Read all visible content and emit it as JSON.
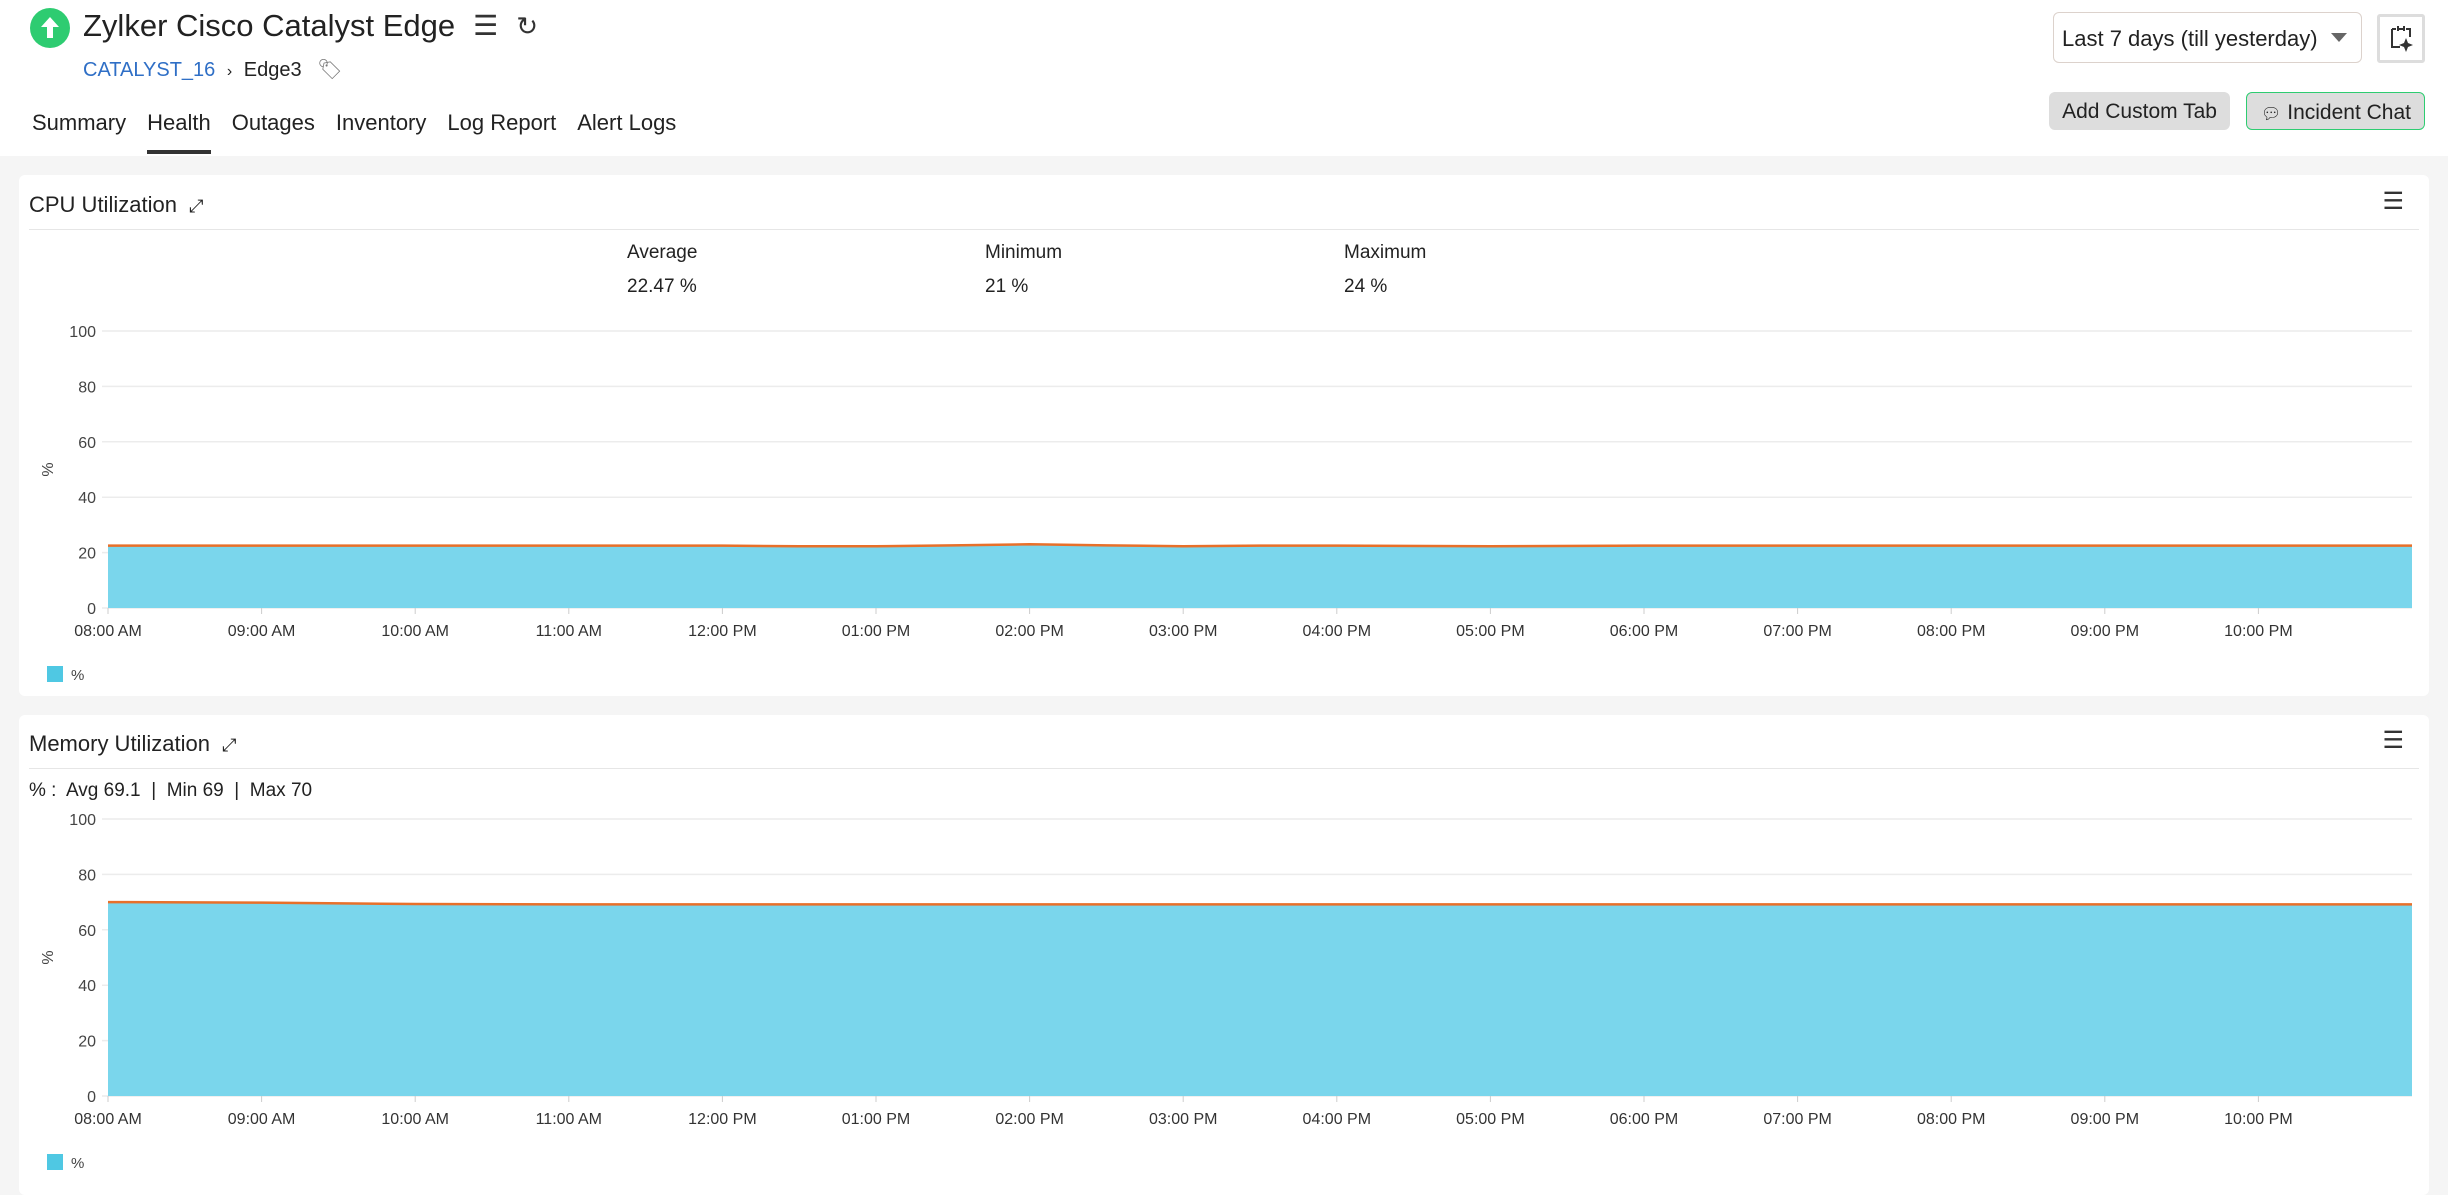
{
  "header": {
    "title": "Zylker Cisco Catalyst Edge",
    "status_color": "#2ecc71",
    "status_icon": "arrow-up-icon",
    "breadcrumb": {
      "parent": "CATALYST_16",
      "current": "Edge3"
    }
  },
  "tabs": [
    {
      "label": "Summary"
    },
    {
      "label": "Health",
      "active": true
    },
    {
      "label": "Outages"
    },
    {
      "label": "Inventory"
    },
    {
      "label": "Log Report"
    },
    {
      "label": "Alert Logs"
    }
  ],
  "time_range": {
    "selected": "Last 7 days (till yesterday)"
  },
  "buttons": {
    "add_custom_tab": "Add Custom Tab",
    "incident_chat": "Incident Chat"
  },
  "cpu": {
    "title": "CPU Utilization",
    "stats": [
      {
        "label": "Average",
        "value": "22.47 %"
      },
      {
        "label": "Minimum",
        "value": "21 %"
      },
      {
        "label": "Maximum",
        "value": "24 %"
      }
    ]
  },
  "memory": {
    "title": "Memory Utilization",
    "summary": {
      "unit": "% :",
      "avg": "Avg 69.1",
      "min": "Min 69",
      "max": "Max 70",
      "sep": "|"
    }
  },
  "chart_data": [
    {
      "type": "area",
      "ylabel": "%",
      "ylim": [
        0,
        100
      ],
      "yticks": [
        "0",
        "20",
        "40",
        "60",
        "80",
        "100"
      ],
      "xticks": [
        "08:00 AM",
        "09:00 AM",
        "10:00 AM",
        "11:00 AM",
        "12:00 PM",
        "01:00 PM",
        "02:00 PM",
        "03:00 PM",
        "04:00 PM",
        "05:00 PM",
        "06:00 PM",
        "07:00 PM",
        "08:00 PM",
        "09:00 PM",
        "10:00 PM"
      ],
      "xrange_hours": [
        8,
        23
      ],
      "fill_color": "#7ad6ec",
      "line_color": "#e8702a",
      "legend": "bottom-left",
      "grid": true,
      "series": [
        {
          "name": "%",
          "x": [
            8,
            9,
            10,
            11,
            12,
            12.5,
            13,
            13.5,
            14,
            14.5,
            15,
            15.5,
            16,
            17,
            18,
            19,
            20,
            21,
            22,
            23
          ],
          "values": [
            22.5,
            22.5,
            22.5,
            22.5,
            22.5,
            22.3,
            22.3,
            22.6,
            23,
            22.6,
            22.3,
            22.5,
            22.5,
            22.3,
            22.5,
            22.5,
            22.5,
            22.5,
            22.5,
            22.5
          ]
        }
      ]
    },
    {
      "type": "area",
      "ylabel": "%",
      "ylim": [
        0,
        100
      ],
      "yticks": [
        "0",
        "20",
        "40",
        "60",
        "80",
        "100"
      ],
      "xticks": [
        "08:00 AM",
        "09:00 AM",
        "10:00 AM",
        "11:00 AM",
        "12:00 PM",
        "01:00 PM",
        "02:00 PM",
        "03:00 PM",
        "04:00 PM",
        "05:00 PM",
        "06:00 PM",
        "07:00 PM",
        "08:00 PM",
        "09:00 PM",
        "10:00 PM"
      ],
      "xrange_hours": [
        8,
        23
      ],
      "fill_color": "#7ad6ec",
      "line_color": "#e8702a",
      "legend": "bottom-left",
      "grid": true,
      "series": [
        {
          "name": "%",
          "x": [
            8,
            9,
            10,
            11,
            12,
            14,
            16,
            18,
            20,
            22,
            23
          ],
          "values": [
            70,
            69.8,
            69.3,
            69.2,
            69.2,
            69.2,
            69.2,
            69.2,
            69.2,
            69.2,
            69.2
          ]
        }
      ]
    }
  ]
}
